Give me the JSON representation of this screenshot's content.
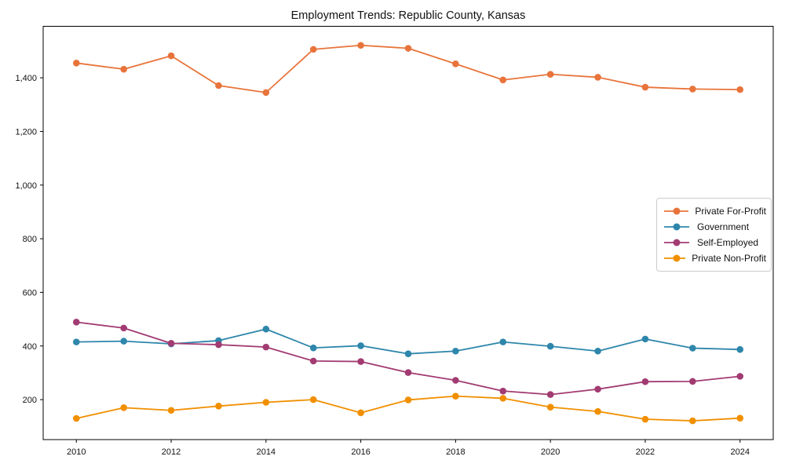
{
  "chart_data": {
    "type": "line",
    "title": "Employment Trends: Republic County, Kansas",
    "xlabel": "",
    "ylabel": "",
    "grid": false,
    "legend_position": "center-right",
    "x": [
      2010,
      2011,
      2012,
      2013,
      2014,
      2015,
      2016,
      2017,
      2018,
      2019,
      2020,
      2021,
      2022,
      2023,
      2024
    ],
    "x_ticks": [
      2010,
      2012,
      2014,
      2016,
      2018,
      2020,
      2022,
      2024
    ],
    "y_ticks": [
      200,
      400,
      600,
      800,
      1000,
      1200,
      1400
    ],
    "xlim": [
      2009.3,
      2024.7
    ],
    "ylim": [
      51,
      1592
    ],
    "series": [
      {
        "name": "Private For-Profit",
        "color": "#E8743B",
        "values": [
          1455,
          1432,
          1482,
          1371,
          1345,
          1506,
          1521,
          1510,
          1452,
          1392,
          1413,
          1402,
          1365,
          1358,
          1356
        ]
      },
      {
        "name": "Government",
        "color": "#2E86AB",
        "values": [
          415,
          418,
          408,
          420,
          463,
          393,
          401,
          371,
          381,
          415,
          399,
          381,
          426,
          392,
          387
        ]
      },
      {
        "name": "Self-Employed",
        "color": "#A23B72",
        "values": [
          489,
          467,
          410,
          405,
          396,
          344,
          342,
          301,
          272,
          232,
          219,
          239,
          267,
          268,
          287
        ]
      },
      {
        "name": "Private Non-Profit",
        "color": "#F18F01",
        "values": [
          130,
          170,
          160,
          176,
          190,
          200,
          151,
          199,
          213,
          205,
          172,
          156,
          127,
          121,
          131
        ]
      }
    ]
  }
}
